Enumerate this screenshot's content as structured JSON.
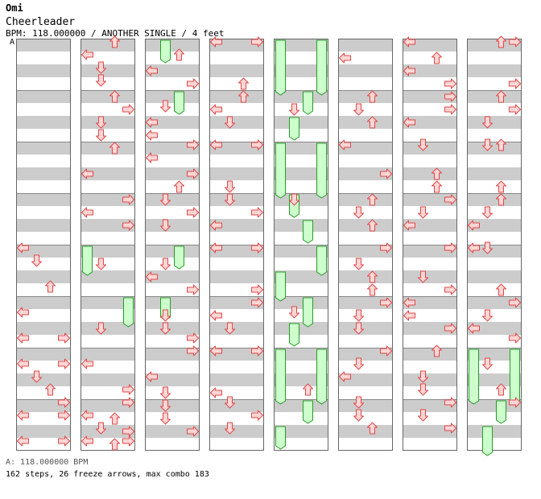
{
  "header": {
    "artist": "Omi",
    "title": "Cheerleader",
    "meta": "BPM: 118.000000 / ANOTHER SINGLE / 4 feet",
    "bpm_marker": "A"
  },
  "footer": {
    "bpm_legend": "A: 118.000000 BPM",
    "summary": "162 steps, 26 freeze arrows, max combo 183"
  },
  "colors": {
    "stripe": "#cccccc",
    "arrow_fill": "#ffd6d6",
    "arrow_stroke": "#e04848",
    "freeze_fill": "#ccffcc",
    "freeze_stroke": "#2a9a2a"
  },
  "chart_data": {
    "type": "step-chart",
    "lanes": [
      "left",
      "down",
      "up",
      "right"
    ],
    "columns": 8,
    "measures_per_column": 8,
    "rows_per_measure": 16,
    "arrows": [
      [
        0,
        64,
        0
      ],
      [
        0,
        68,
        1
      ],
      [
        0,
        76,
        2
      ],
      [
        0,
        84,
        0
      ],
      [
        0,
        92,
        0
      ],
      [
        0,
        92,
        3
      ],
      [
        0,
        100,
        0
      ],
      [
        0,
        100,
        3
      ],
      [
        0,
        104,
        1
      ],
      [
        0,
        108,
        2
      ],
      [
        0,
        112,
        3
      ],
      [
        0,
        116,
        0
      ],
      [
        0,
        116,
        3
      ],
      [
        0,
        124,
        0
      ],
      [
        0,
        124,
        3
      ],
      [
        1,
        0,
        2
      ],
      [
        1,
        4,
        0
      ],
      [
        1,
        8,
        1
      ],
      [
        1,
        12,
        1
      ],
      [
        1,
        17,
        2
      ],
      [
        1,
        21,
        3
      ],
      [
        1,
        25,
        1
      ],
      [
        1,
        29,
        1
      ],
      [
        1,
        33,
        2
      ],
      [
        1,
        41,
        0
      ],
      [
        1,
        49,
        3
      ],
      [
        1,
        53,
        0
      ],
      [
        1,
        57,
        3
      ],
      [
        1,
        69,
        1
      ],
      [
        1,
        89,
        1
      ],
      [
        1,
        100,
        0
      ],
      [
        1,
        108,
        3
      ],
      [
        1,
        116,
        0
      ],
      [
        1,
        120,
        1
      ],
      [
        1,
        124,
        0
      ],
      [
        1,
        124,
        3
      ],
      [
        1,
        112,
        3
      ],
      [
        1,
        117,
        2
      ],
      [
        1,
        121,
        3
      ],
      [
        1,
        125,
        2
      ],
      [
        2,
        4,
        2
      ],
      [
        2,
        9,
        0
      ],
      [
        2,
        13,
        3
      ],
      [
        2,
        20,
        1
      ],
      [
        2,
        25,
        0
      ],
      [
        2,
        29,
        0
      ],
      [
        2,
        32,
        3
      ],
      [
        2,
        36,
        0
      ],
      [
        2,
        41,
        3
      ],
      [
        2,
        45,
        2
      ],
      [
        2,
        49,
        1
      ],
      [
        2,
        53,
        3
      ],
      [
        2,
        57,
        1
      ],
      [
        2,
        69,
        1
      ],
      [
        2,
        73,
        0
      ],
      [
        2,
        77,
        3
      ],
      [
        2,
        85,
        1
      ],
      [
        2,
        89,
        1
      ],
      [
        2,
        92,
        3
      ],
      [
        2,
        96,
        3
      ],
      [
        2,
        104,
        0
      ],
      [
        2,
        109,
        1
      ],
      [
        2,
        113,
        1
      ],
      [
        2,
        117,
        1
      ],
      [
        2,
        121,
        3
      ],
      [
        3,
        0,
        0
      ],
      [
        3,
        0,
        3
      ],
      [
        3,
        13,
        2
      ],
      [
        3,
        17,
        2
      ],
      [
        3,
        21,
        0
      ],
      [
        3,
        25,
        1
      ],
      [
        3,
        32,
        0
      ],
      [
        3,
        32,
        3
      ],
      [
        3,
        45,
        1
      ],
      [
        3,
        49,
        1
      ],
      [
        3,
        53,
        3
      ],
      [
        3,
        57,
        0
      ],
      [
        3,
        64,
        0
      ],
      [
        3,
        64,
        3
      ],
      [
        3,
        77,
        3
      ],
      [
        3,
        81,
        3
      ],
      [
        3,
        85,
        0
      ],
      [
        3,
        89,
        1
      ],
      [
        3,
        96,
        0
      ],
      [
        3,
        96,
        3
      ],
      [
        3,
        112,
        1
      ],
      [
        3,
        116,
        3
      ],
      [
        3,
        120,
        1
      ],
      [
        3,
        109,
        0
      ],
      [
        4,
        49,
        1
      ],
      [
        4,
        108,
        2
      ],
      [
        4,
        84,
        1
      ],
      [
        4,
        21,
        1
      ],
      [
        5,
        5,
        0
      ],
      [
        5,
        17,
        2
      ],
      [
        5,
        21,
        1
      ],
      [
        5,
        25,
        2
      ],
      [
        5,
        32,
        0
      ],
      [
        5,
        41,
        3
      ],
      [
        5,
        49,
        2
      ],
      [
        5,
        53,
        1
      ],
      [
        5,
        57,
        2
      ],
      [
        5,
        64,
        3
      ],
      [
        5,
        69,
        1
      ],
      [
        5,
        73,
        2
      ],
      [
        5,
        77,
        2
      ],
      [
        5,
        81,
        3
      ],
      [
        5,
        85,
        1
      ],
      [
        5,
        89,
        1
      ],
      [
        5,
        96,
        3
      ],
      [
        5,
        100,
        1
      ],
      [
        5,
        104,
        0
      ],
      [
        5,
        112,
        1
      ],
      [
        5,
        116,
        1
      ],
      [
        5,
        120,
        2
      ],
      [
        6,
        0,
        0
      ],
      [
        6,
        5,
        2
      ],
      [
        6,
        9,
        0
      ],
      [
        6,
        13,
        3
      ],
      [
        6,
        17,
        3
      ],
      [
        6,
        21,
        3
      ],
      [
        6,
        25,
        0
      ],
      [
        6,
        32,
        1
      ],
      [
        6,
        41,
        2
      ],
      [
        6,
        45,
        2
      ],
      [
        6,
        49,
        3
      ],
      [
        6,
        53,
        1
      ],
      [
        6,
        57,
        0
      ],
      [
        6,
        64,
        3
      ],
      [
        6,
        73,
        1
      ],
      [
        6,
        77,
        3
      ],
      [
        6,
        81,
        0
      ],
      [
        6,
        85,
        0
      ],
      [
        6,
        89,
        3
      ],
      [
        6,
        96,
        2
      ],
      [
        6,
        104,
        1
      ],
      [
        6,
        108,
        1
      ],
      [
        6,
        112,
        3
      ],
      [
        6,
        116,
        1
      ],
      [
        6,
        120,
        3
      ],
      [
        7,
        0,
        2
      ],
      [
        7,
        0,
        3
      ],
      [
        7,
        13,
        3
      ],
      [
        7,
        17,
        2
      ],
      [
        7,
        21,
        3
      ],
      [
        7,
        25,
        1
      ],
      [
        7,
        32,
        1
      ],
      [
        7,
        32,
        2
      ],
      [
        7,
        45,
        2
      ],
      [
        7,
        49,
        2
      ],
      [
        7,
        53,
        1
      ],
      [
        7,
        57,
        0
      ],
      [
        7,
        64,
        0
      ],
      [
        7,
        64,
        1
      ],
      [
        7,
        77,
        2
      ],
      [
        7,
        81,
        3
      ],
      [
        7,
        85,
        1
      ],
      [
        7,
        89,
        0
      ],
      [
        7,
        92,
        3
      ],
      [
        7,
        100,
        1
      ],
      [
        7,
        108,
        2
      ],
      [
        7,
        112,
        3
      ]
    ],
    "freezes": [
      [
        1,
        64,
        72,
        0
      ],
      [
        1,
        80,
        88,
        3
      ],
      [
        2,
        0,
        6,
        1
      ],
      [
        2,
        16,
        22,
        2
      ],
      [
        2,
        64,
        70,
        2
      ],
      [
        2,
        80,
        86,
        1
      ],
      [
        4,
        0,
        16,
        0
      ],
      [
        4,
        0,
        16,
        3
      ],
      [
        4,
        16,
        22,
        2
      ],
      [
        4,
        24,
        30,
        1
      ],
      [
        4,
        32,
        48,
        0
      ],
      [
        4,
        32,
        48,
        3
      ],
      [
        4,
        48,
        54,
        1
      ],
      [
        4,
        56,
        62,
        2
      ],
      [
        4,
        64,
        72,
        3
      ],
      [
        4,
        72,
        80,
        0
      ],
      [
        4,
        80,
        88,
        2
      ],
      [
        4,
        88,
        94,
        1
      ],
      [
        4,
        96,
        112,
        0
      ],
      [
        4,
        96,
        112,
        3
      ],
      [
        4,
        112,
        118,
        2
      ],
      [
        4,
        120,
        126,
        0
      ],
      [
        7,
        96,
        112,
        0
      ],
      [
        7,
        96,
        112,
        3
      ],
      [
        7,
        112,
        118,
        2
      ],
      [
        7,
        120,
        128,
        1
      ]
    ]
  }
}
